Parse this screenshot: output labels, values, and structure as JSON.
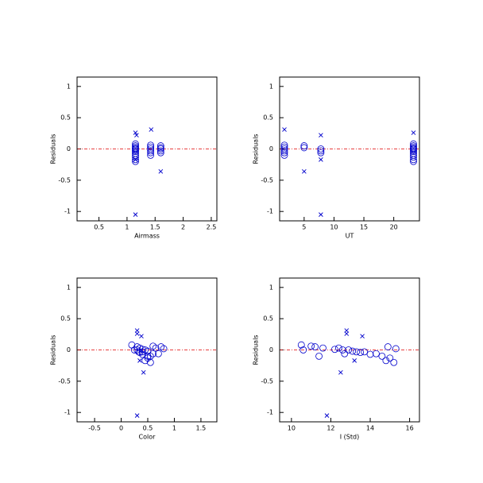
{
  "chart_data": [
    {
      "type": "scatter",
      "xlabel": "Airmass",
      "ylabel": "Residuals",
      "xlim": [
        0.11,
        2.6
      ],
      "ylim": [
        -1.15,
        1.15
      ],
      "xticks": [
        0.5,
        1.0,
        1.5,
        2.0,
        2.5
      ],
      "yticks": [
        -1.0,
        -0.5,
        0.0,
        0.5,
        1.0
      ],
      "hline": 0,
      "hline_color": "#e00000",
      "series": [
        {
          "marker": "circle",
          "color": "#0000cc",
          "x": [
            1.15,
            1.15,
            1.15,
            1.15,
            1.15,
            1.15,
            1.15,
            1.15,
            1.15,
            1.15,
            1.15,
            1.15,
            1.42,
            1.42,
            1.42,
            1.42,
            1.42,
            1.42,
            1.6,
            1.6,
            1.6,
            1.6,
            1.6
          ],
          "values": [
            0.08,
            0.05,
            0.03,
            0.01,
            0,
            -0.02,
            -0.04,
            -0.07,
            -0.1,
            -0.13,
            -0.17,
            -0.2,
            0.06,
            0.03,
            0,
            -0.03,
            -0.06,
            -0.1,
            0.05,
            0.02,
            0,
            -0.03,
            -0.06
          ]
        },
        {
          "marker": "x",
          "color": "#0000cc",
          "x": [
            1.15,
            1.43,
            1.17,
            1.6,
            1.15,
            1.15
          ],
          "values": [
            0.26,
            0.31,
            0.22,
            -0.36,
            -1.05,
            -0.17
          ]
        }
      ]
    },
    {
      "type": "scatter",
      "xlabel": "UT",
      "ylabel": "Residuals",
      "xlim": [
        0.9,
        24.3
      ],
      "ylim": [
        -1.15,
        1.15
      ],
      "xticks": [
        5,
        10,
        15,
        20
      ],
      "yticks": [
        -1.0,
        -0.5,
        0.0,
        0.5,
        1.0
      ],
      "hline": 0,
      "hline_color": "#e00000",
      "series": [
        {
          "marker": "circle",
          "color": "#0000cc",
          "x": [
            23.3,
            23.3,
            23.3,
            23.3,
            23.3,
            23.3,
            23.3,
            23.3,
            23.3,
            23.3,
            23.3,
            23.3,
            1.7,
            1.7,
            1.7,
            1.7,
            1.7,
            1.7,
            5.0,
            5.0,
            7.8,
            7.8,
            7.8
          ],
          "values": [
            0.08,
            0.05,
            0.03,
            0.01,
            0,
            -0.02,
            -0.04,
            -0.07,
            -0.1,
            -0.13,
            -0.17,
            -0.2,
            0.06,
            0.03,
            0,
            -0.03,
            -0.06,
            -0.1,
            0.05,
            0.02,
            0,
            -0.03,
            -0.06
          ]
        },
        {
          "marker": "x",
          "color": "#0000cc",
          "x": [
            23.3,
            1.7,
            7.8,
            5.0,
            7.8,
            7.8
          ],
          "values": [
            0.26,
            0.31,
            0.22,
            -0.36,
            -1.05,
            -0.17
          ]
        }
      ]
    },
    {
      "type": "scatter",
      "xlabel": "Color",
      "ylabel": "Residuals",
      "xlim": [
        -0.83,
        1.8
      ],
      "ylim": [
        -1.15,
        1.15
      ],
      "xticks": [
        -0.5,
        0.0,
        0.5,
        1.0,
        1.5
      ],
      "yticks": [
        -1.0,
        -0.5,
        0.0,
        0.5,
        1.0
      ],
      "hline": 0,
      "hline_color": "#e00000",
      "series": [
        {
          "marker": "circle",
          "color": "#0000cc",
          "x": [
            0.2,
            0.3,
            0.35,
            0.4,
            0.45,
            0.5,
            0.35,
            0.4,
            0.55,
            0.5,
            0.45,
            0.55,
            0.6,
            0.65,
            0.3,
            0.4,
            0.7,
            0.5,
            0.75,
            0.8,
            0.25,
            0.33,
            0.6
          ],
          "values": [
            0.08,
            0.05,
            0.03,
            0.01,
            0,
            -0.02,
            -0.04,
            -0.07,
            -0.1,
            -0.13,
            -0.17,
            -0.2,
            0.06,
            0.03,
            0,
            -0.03,
            -0.06,
            -0.1,
            0.05,
            0.02,
            0,
            -0.03,
            -0.06
          ]
        },
        {
          "marker": "x",
          "color": "#0000cc",
          "x": [
            0.3,
            0.3,
            0.38,
            0.42,
            0.3,
            0.35
          ],
          "values": [
            0.26,
            0.31,
            0.22,
            -0.36,
            -1.05,
            -0.17
          ]
        }
      ]
    },
    {
      "type": "scatter",
      "xlabel": "I (Std)",
      "ylabel": "Residuals",
      "xlim": [
        9.4,
        16.5
      ],
      "ylim": [
        -1.15,
        1.15
      ],
      "xticks": [
        10,
        12,
        14,
        16
      ],
      "yticks": [
        -1.0,
        -0.5,
        0.0,
        0.5,
        1.0
      ],
      "hline": 0,
      "hline_color": "#e00000",
      "series": [
        {
          "marker": "circle",
          "color": "#0000cc",
          "x": [
            10.5,
            11.2,
            11.6,
            12.2,
            12.6,
            13.1,
            13.5,
            14.0,
            14.6,
            15.0,
            14.8,
            15.2,
            11.0,
            12.4,
            12.9,
            13.7,
            14.3,
            11.4,
            14.9,
            15.3,
            10.6,
            13.3,
            12.7
          ],
          "values": [
            0.08,
            0.05,
            0.03,
            0.01,
            0,
            -0.02,
            -0.04,
            -0.07,
            -0.1,
            -0.13,
            -0.17,
            -0.2,
            0.06,
            0.03,
            0,
            -0.03,
            -0.06,
            -0.1,
            0.05,
            0.02,
            0,
            -0.03,
            -0.06
          ]
        },
        {
          "marker": "x",
          "color": "#0000cc",
          "x": [
            12.8,
            12.8,
            13.6,
            12.5,
            11.8,
            13.2
          ],
          "values": [
            0.26,
            0.31,
            0.22,
            -0.36,
            -1.05,
            -0.17
          ]
        }
      ]
    }
  ]
}
